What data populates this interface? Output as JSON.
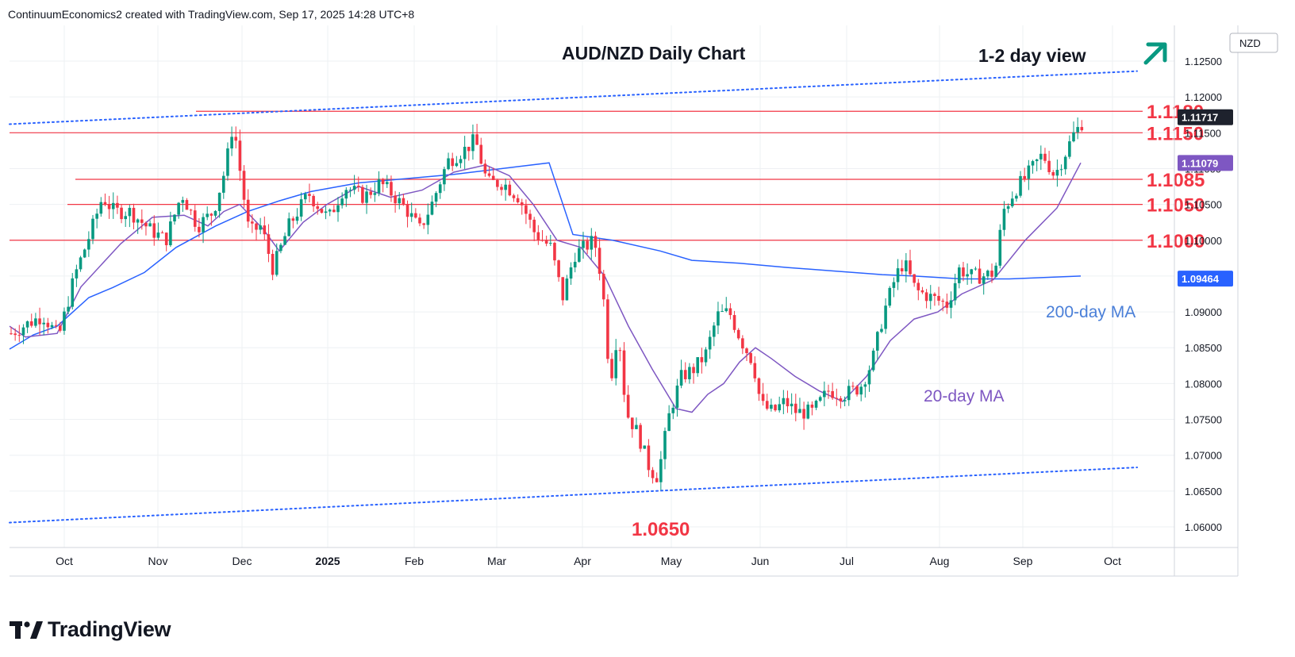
{
  "header": {
    "text": "ContinuumEconomics2 created with TradingView.com, Sep 17, 2025 14:28 UTC+8"
  },
  "brand": {
    "name": "TradingView"
  },
  "chart_data": {
    "type": "candlestick",
    "title": "AUD/NZD Daily Chart",
    "subtitle": "1-2 day view",
    "direction_icon": "arrow-up-right-icon",
    "currency": "NZD",
    "ylim": [
      1.0565,
      1.1305
    ],
    "y_ticks": [
      "1.12500",
      "1.12000",
      "1.11500",
      "1.11000",
      "1.10500",
      "1.10000",
      "1.09500",
      "1.09000",
      "1.08500",
      "1.08000",
      "1.07500",
      "1.07000",
      "1.06500",
      "1.06000"
    ],
    "x_ticks": [
      "Oct",
      "Nov",
      "Dec",
      "2025",
      "Feb",
      "Mar",
      "Apr",
      "May",
      "Jun",
      "Jul",
      "Aug",
      "Sep",
      "Oct"
    ],
    "grid": true,
    "price_badges": [
      {
        "label": "1.11717",
        "value": 1.11717,
        "color": "#1e222d"
      },
      {
        "label": "1.11079",
        "value": 1.11079,
        "color": "#7e57c2"
      },
      {
        "label": "1.09464",
        "value": 1.09464,
        "color": "#2962ff"
      }
    ],
    "levels": [
      {
        "label": "1.1180",
        "value": 1.118,
        "start": "Nov 20"
      },
      {
        "label": "1.1150",
        "value": 1.115,
        "start": "Sep 16"
      },
      {
        "label": "1.1085",
        "value": 1.1085,
        "start": "Oct 7"
      },
      {
        "label": "1.1050",
        "value": 1.105,
        "start": "Oct 6"
      },
      {
        "label": "1.1000",
        "value": 1.1,
        "start": "Sep 16"
      }
    ],
    "channel": [
      {
        "from": [
          "Sep 16",
          1.1162
        ],
        "to": [
          "Sep 19, 2025",
          1.1236
        ]
      },
      {
        "from": [
          "Sep 16",
          1.0606
        ],
        "to": [
          "Sep 19, 2025",
          1.0683
        ]
      }
    ],
    "low_label": {
      "label": "1.0650",
      "value": 1.065,
      "date": "Apr 22"
    },
    "ma_labels": [
      {
        "label": "200-day MA",
        "color": "#4a7fd8"
      },
      {
        "label": "20-day MA",
        "color": "#7e57c2"
      }
    ],
    "colors": {
      "up": "#089981",
      "down": "#f23645",
      "level": "#f23645",
      "ma20": "#7e57c2",
      "ma200": "#2962ff",
      "channel": "#2962ff",
      "arrow": "#089981"
    },
    "ma200": [
      [
        0,
        1.0848
      ],
      [
        30,
        1.0868
      ],
      [
        60,
        1.088
      ],
      [
        100,
        1.092
      ],
      [
        130,
        1.0934
      ],
      [
        170,
        1.0955
      ],
      [
        210,
        1.099
      ],
      [
        260,
        1.102
      ],
      [
        300,
        1.104
      ],
      [
        340,
        1.1055
      ],
      [
        380,
        1.1068
      ],
      [
        440,
        1.108
      ],
      [
        500,
        1.1086
      ],
      [
        560,
        1.1092
      ],
      [
        620,
        1.11
      ],
      [
        680,
        1.1108
      ],
      [
        710,
        1.1008
      ],
      [
        760,
        1.1
      ],
      [
        820,
        1.0985
      ],
      [
        860,
        1.0972
      ],
      [
        920,
        1.0968
      ],
      [
        980,
        1.0962
      ],
      [
        1040,
        1.0957
      ],
      [
        1100,
        1.0952
      ],
      [
        1140,
        1.095
      ],
      [
        1200,
        1.0946
      ],
      [
        1260,
        1.0946
      ],
      [
        1350,
        1.095
      ]
    ],
    "ma20": [
      [
        0,
        1.088
      ],
      [
        20,
        1.0865
      ],
      [
        60,
        1.087
      ],
      [
        90,
        1.0935
      ],
      [
        140,
        1.0995
      ],
      [
        180,
        1.1032
      ],
      [
        220,
        1.1035
      ],
      [
        250,
        1.102
      ],
      [
        270,
        1.104
      ],
      [
        290,
        1.105
      ],
      [
        320,
        1.1015
      ],
      [
        340,
        1.0985
      ],
      [
        370,
        1.1025
      ],
      [
        400,
        1.105
      ],
      [
        440,
        1.1075
      ],
      [
        480,
        1.106
      ],
      [
        520,
        1.107
      ],
      [
        560,
        1.1095
      ],
      [
        600,
        1.1105
      ],
      [
        630,
        1.109
      ],
      [
        660,
        1.105
      ],
      [
        690,
        1.1
      ],
      [
        720,
        1.099
      ],
      [
        750,
        1.095
      ],
      [
        780,
        1.088
      ],
      [
        810,
        1.082
      ],
      [
        840,
        1.0765
      ],
      [
        860,
        1.076
      ],
      [
        880,
        1.0785
      ],
      [
        900,
        1.08
      ],
      [
        920,
        1.083
      ],
      [
        940,
        1.085
      ],
      [
        960,
        1.0835
      ],
      [
        990,
        1.081
      ],
      [
        1020,
        1.079
      ],
      [
        1050,
        1.0775
      ],
      [
        1080,
        1.081
      ],
      [
        1110,
        1.086
      ],
      [
        1140,
        1.089
      ],
      [
        1170,
        1.09
      ],
      [
        1200,
        1.0925
      ],
      [
        1240,
        1.0945
      ],
      [
        1280,
        1.1
      ],
      [
        1320,
        1.1045
      ],
      [
        1350,
        1.1108
      ]
    ],
    "anchors": [
      [
        0,
        1.087
      ],
      [
        15,
        1.088
      ],
      [
        40,
        1.0895
      ],
      [
        60,
        1.0865
      ],
      [
        80,
        1.095
      ],
      [
        100,
        1.101
      ],
      [
        115,
        1.106
      ],
      [
        130,
        1.104
      ],
      [
        150,
        1.104
      ],
      [
        175,
        1.1015
      ],
      [
        195,
        1.1
      ],
      [
        215,
        1.1065
      ],
      [
        235,
        1.102
      ],
      [
        255,
        1.104
      ],
      [
        270,
        1.11
      ],
      [
        280,
        1.1165
      ],
      [
        290,
        1.1085
      ],
      [
        300,
        1.101
      ],
      [
        315,
        1.102
      ],
      [
        330,
        1.096
      ],
      [
        350,
        1.102
      ],
      [
        375,
        1.1065
      ],
      [
        400,
        1.103
      ],
      [
        420,
        1.1075
      ],
      [
        445,
        1.106
      ],
      [
        465,
        1.108
      ],
      [
        480,
        1.1065
      ],
      [
        500,
        1.104
      ],
      [
        515,
        1.1015
      ],
      [
        530,
        1.105
      ],
      [
        550,
        1.111
      ],
      [
        570,
        1.1125
      ],
      [
        585,
        1.114
      ],
      [
        600,
        1.108
      ],
      [
        620,
        1.108
      ],
      [
        640,
        1.106
      ],
      [
        660,
        1.101
      ],
      [
        680,
        1.099
      ],
      [
        695,
        1.092
      ],
      [
        710,
        1.098
      ],
      [
        735,
        1.1
      ],
      [
        745,
        1.094
      ],
      [
        755,
        1.08
      ],
      [
        765,
        1.088
      ],
      [
        775,
        1.076
      ],
      [
        790,
        1.073
      ],
      [
        805,
        1.068
      ],
      [
        815,
        1.067
      ],
      [
        830,
        1.076
      ],
      [
        845,
        1.081
      ],
      [
        860,
        1.082
      ],
      [
        875,
        1.084
      ],
      [
        890,
        1.0895
      ],
      [
        905,
        1.09
      ],
      [
        920,
        1.086
      ],
      [
        935,
        1.083
      ],
      [
        945,
        1.077
      ],
      [
        960,
        1.076
      ],
      [
        975,
        1.0775
      ],
      [
        990,
        1.076
      ],
      [
        1010,
        1.076
      ],
      [
        1030,
        1.079
      ],
      [
        1050,
        1.0785
      ],
      [
        1070,
        1.0795
      ],
      [
        1085,
        1.083
      ],
      [
        1100,
        1.09
      ],
      [
        1115,
        1.095
      ],
      [
        1125,
        1.097
      ],
      [
        1140,
        1.093
      ],
      [
        1160,
        1.092
      ],
      [
        1180,
        1.091
      ],
      [
        1195,
        1.096
      ],
      [
        1210,
        1.095
      ],
      [
        1225,
        1.095
      ],
      [
        1240,
        1.0955
      ],
      [
        1250,
        1.104
      ],
      [
        1265,
        1.107
      ],
      [
        1280,
        1.109
      ],
      [
        1300,
        1.112
      ],
      [
        1315,
        1.109
      ],
      [
        1330,
        1.1125
      ],
      [
        1340,
        1.115
      ],
      [
        1348,
        1.116
      ],
      [
        1352,
        1.1172
      ]
    ]
  }
}
